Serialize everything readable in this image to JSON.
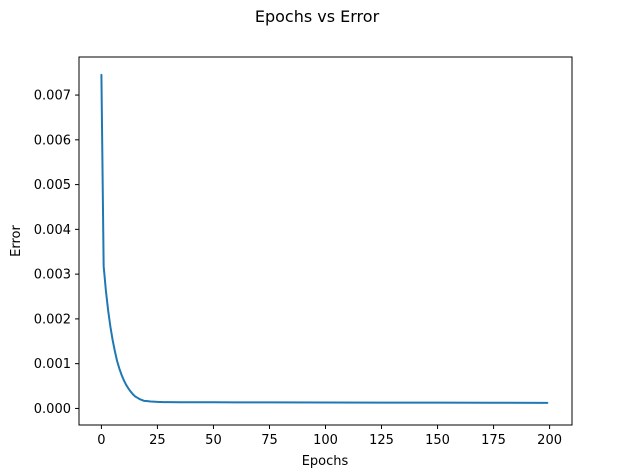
{
  "chart_data": {
    "type": "line",
    "title": "Epochs vs Error",
    "xlabel": "Epochs",
    "ylabel": "Error",
    "xlim": [
      -10,
      210
    ],
    "ylim": [
      -0.00037,
      0.00785
    ],
    "xticks": [
      0,
      25,
      50,
      75,
      100,
      125,
      150,
      175,
      200
    ],
    "yticks": [
      0.0,
      0.001,
      0.002,
      0.003,
      0.004,
      0.005,
      0.006,
      0.007
    ],
    "ytick_labels": [
      "0.000",
      "0.001",
      "0.002",
      "0.003",
      "0.004",
      "0.005",
      "0.006",
      "0.007"
    ],
    "grid": false,
    "series": [
      {
        "color": "#1f77b4",
        "x": [
          0,
          1,
          2,
          3,
          4,
          5,
          6,
          7,
          8,
          9,
          10,
          11,
          12,
          13,
          14,
          15,
          16,
          17,
          18,
          19,
          20,
          22,
          24,
          26,
          28,
          30,
          35,
          40,
          50,
          60,
          75,
          100,
          125,
          150,
          175,
          199
        ],
        "y": [
          0.00745,
          0.00318,
          0.00263,
          0.00219,
          0.00183,
          0.00153,
          0.00128,
          0.00106,
          0.00089,
          0.00075,
          0.00063,
          0.00053,
          0.00045,
          0.00038,
          0.00032,
          0.00027,
          0.00024,
          0.00021,
          0.00019,
          0.00017,
          0.000165,
          0.000155,
          0.00015,
          0.000145,
          0.000142,
          0.00014,
          0.000139,
          0.000138,
          0.000137,
          0.000136,
          0.000135,
          0.000133,
          0.000131,
          0.000129,
          0.000127,
          0.000125
        ]
      }
    ]
  }
}
